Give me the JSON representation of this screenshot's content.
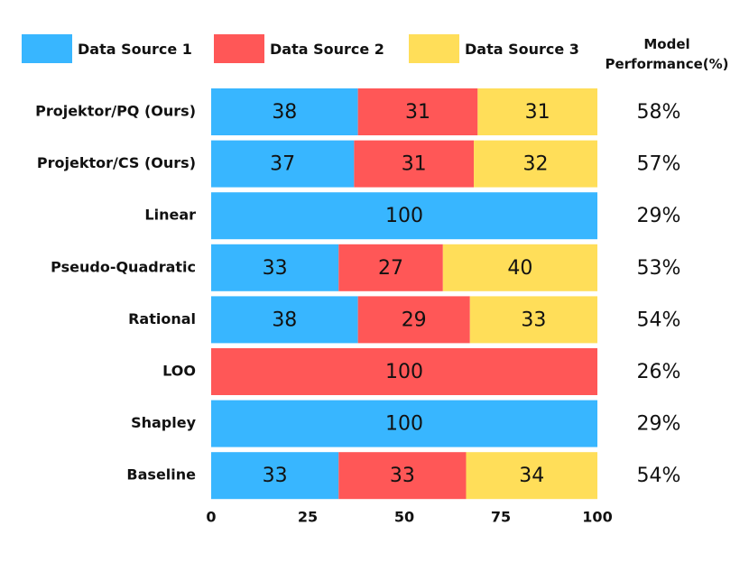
{
  "legend": {
    "items": [
      {
        "label": "Data Source 1",
        "color": "#38B6FF"
      },
      {
        "label": "Data Source 2",
        "color": "#FF5757"
      },
      {
        "label": "Data Source 3",
        "color": "#FFDE59"
      }
    ],
    "performance_title_line1": "Model",
    "performance_title_line2": "Performance(%)"
  },
  "chart_data": {
    "type": "bar",
    "orientation": "horizontal",
    "stacked": true,
    "categories": [
      "Projektor/PQ (Ours)",
      "Projektor/CS (Ours)",
      "Linear",
      "Pseudo-Quadratic",
      "Rational",
      "LOO",
      "Shapley",
      "Baseline"
    ],
    "series": [
      {
        "name": "Data Source 1",
        "color": "#38B6FF",
        "values": [
          38,
          37,
          100,
          33,
          38,
          0,
          100,
          33
        ]
      },
      {
        "name": "Data Source 2",
        "color": "#FF5757",
        "values": [
          31,
          31,
          0,
          27,
          29,
          100,
          0,
          33
        ]
      },
      {
        "name": "Data Source 3",
        "color": "#FFDE59",
        "values": [
          31,
          32,
          0,
          40,
          33,
          0,
          0,
          34
        ]
      }
    ],
    "model_performance": [
      "58%",
      "57%",
      "29%",
      "53%",
      "54%",
      "26%",
      "29%",
      "54%"
    ],
    "xlim": [
      0,
      100
    ],
    "xticks": [
      0,
      25,
      50,
      75,
      100
    ],
    "xlabel": "",
    "ylabel": "",
    "legend_position": "top",
    "grid": false
  }
}
